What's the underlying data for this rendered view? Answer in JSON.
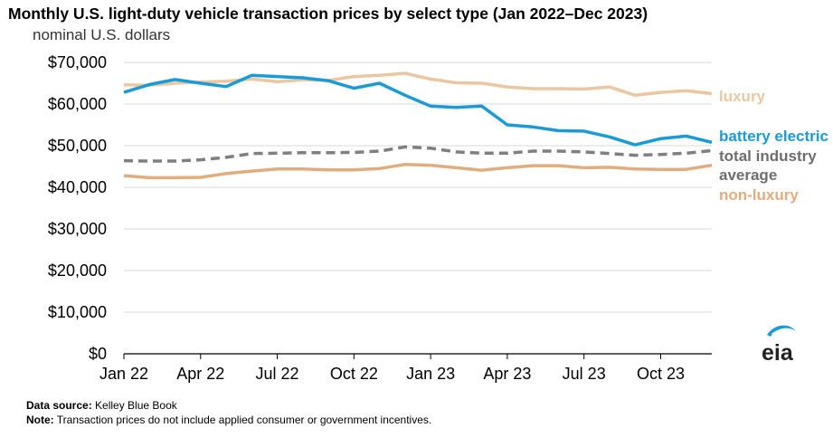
{
  "title": "Monthly U.S. light-duty vehicle transaction prices by select type (Jan 2022–Dec 2023)",
  "subtitle": "nominal U.S. dollars",
  "chart_data": {
    "type": "line",
    "title": "Monthly U.S. light-duty vehicle transaction prices by select type (Jan 2022–Dec 2023)",
    "ylabel": "nominal U.S. dollars",
    "xlabel": "",
    "ylim": [
      0,
      70000
    ],
    "yticks": [
      0,
      10000,
      20000,
      30000,
      40000,
      50000,
      60000,
      70000
    ],
    "ytick_labels": [
      "$0",
      "$10,000",
      "$20,000",
      "$30,000",
      "$40,000",
      "$50,000",
      "$60,000",
      "$70,000"
    ],
    "grid": "horizontal",
    "x": [
      "Jan 22",
      "Feb 22",
      "Mar 22",
      "Apr 22",
      "May 22",
      "Jun 22",
      "Jul 22",
      "Aug 22",
      "Sep 22",
      "Oct 22",
      "Nov 22",
      "Dec 22",
      "Jan 23",
      "Feb 23",
      "Mar 23",
      "Apr 23",
      "May 23",
      "Jun 23",
      "Jul 23",
      "Aug 23",
      "Sep 23",
      "Oct 23",
      "Nov 23",
      "Dec 23"
    ],
    "xtick_indices": [
      0,
      3,
      6,
      9,
      12,
      15,
      18,
      21
    ],
    "xtick_labels": [
      "Jan 22",
      "Apr 22",
      "Jul 22",
      "Oct 22",
      "Jan 23",
      "Apr 23",
      "Jul 23",
      "Oct 23"
    ],
    "series": [
      {
        "name": "luxury",
        "label_lines": [
          "luxury"
        ],
        "color": "#ebc7a1",
        "dash": "solid",
        "values": [
          64600,
          64500,
          65000,
          65300,
          65500,
          66000,
          65400,
          65800,
          65700,
          66600,
          66900,
          67400,
          66000,
          65100,
          65000,
          64100,
          63700,
          63700,
          63600,
          64100,
          62100,
          62800,
          63200,
          62500
        ]
      },
      {
        "name": "battery electric",
        "label_lines": [
          "battery electric"
        ],
        "color": "#1a9ad6",
        "dash": "solid",
        "values": [
          62800,
          64700,
          65900,
          65000,
          64200,
          66900,
          66600,
          66300,
          65600,
          63800,
          65000,
          62100,
          59500,
          59200,
          59500,
          55000,
          54500,
          53600,
          53500,
          52100,
          50200,
          51700,
          52300,
          50800
        ]
      },
      {
        "name": "total industry average",
        "label_lines": [
          "total industry",
          "average"
        ],
        "color": "#7f7f7f",
        "dash": "dashed",
        "values": [
          46400,
          46300,
          46300,
          46600,
          47200,
          48100,
          48200,
          48300,
          48300,
          48400,
          48700,
          49700,
          49400,
          48500,
          48200,
          48200,
          48700,
          48700,
          48500,
          48100,
          47700,
          47900,
          48200,
          48800
        ]
      },
      {
        "name": "non-luxury",
        "label_lines": [
          "non-luxury"
        ],
        "color": "#e1ad7e",
        "dash": "solid",
        "values": [
          42800,
          42300,
          42300,
          42400,
          43300,
          43900,
          44400,
          44400,
          44200,
          44200,
          44500,
          45500,
          45300,
          44700,
          44100,
          44700,
          45200,
          45200,
          44700,
          44800,
          44400,
          44300,
          44300,
          45300
        ]
      }
    ]
  },
  "footer": {
    "source_label": "Data source:",
    "source_text": " Kelley Blue Book",
    "note_label": "Note:",
    "note_text": " Transaction prices do not include applied consumer or government incentives."
  },
  "logo": {
    "text": "eia"
  }
}
